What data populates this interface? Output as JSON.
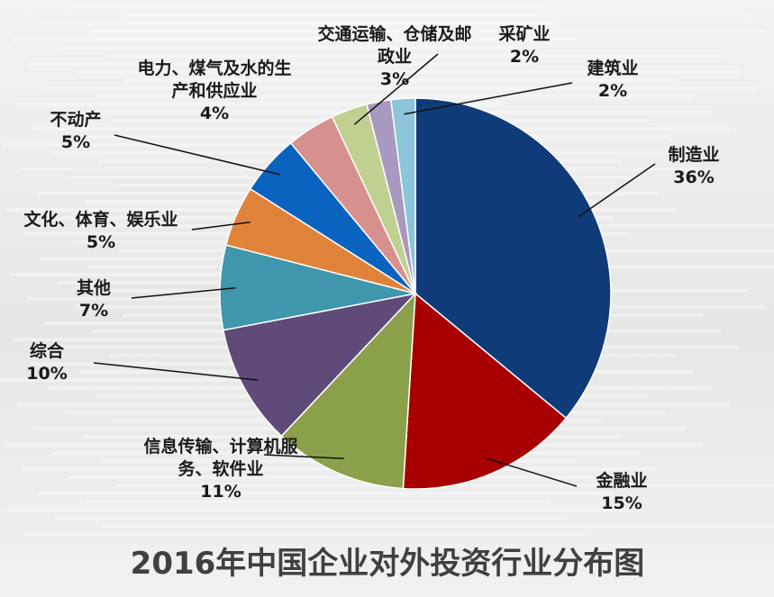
{
  "chart_data": {
    "type": "pie",
    "title": "2016年中国企业对外投资行业分布图",
    "slices": [
      {
        "label": "制造业",
        "value": 36,
        "value_label": "36%",
        "color": "#0f3c78"
      },
      {
        "label": "金融业",
        "value": 15,
        "value_label": "15%",
        "color": "#a80000"
      },
      {
        "label": "信息传输、计算机服务、软件业",
        "value": 11,
        "value_label": "11%",
        "color": "#8aa04a"
      },
      {
        "label": "综合",
        "value": 10,
        "value_label": "10%",
        "color": "#5f4a7a"
      },
      {
        "label": "其他",
        "value": 7,
        "value_label": "7%",
        "color": "#4096ac"
      },
      {
        "label": "文化、体育、娱乐业",
        "value": 5,
        "value_label": "5%",
        "color": "#e0833a"
      },
      {
        "label": "不动产",
        "value": 5,
        "value_label": "5%",
        "color": "#0a63bf"
      },
      {
        "label": "电力、煤气及水的生产和供应业",
        "value": 4,
        "value_label": "4%",
        "color": "#d6908e"
      },
      {
        "label": "交通运输、仓储及邮政业",
        "value": 3,
        "value_label": "3%",
        "color": "#bfd090"
      },
      {
        "label": "采矿业",
        "value": 2,
        "value_label": "2%",
        "color": "#a899c0"
      },
      {
        "label": "建筑业",
        "value": 2,
        "value_label": "2%",
        "color": "#8cc4d9"
      }
    ]
  }
}
